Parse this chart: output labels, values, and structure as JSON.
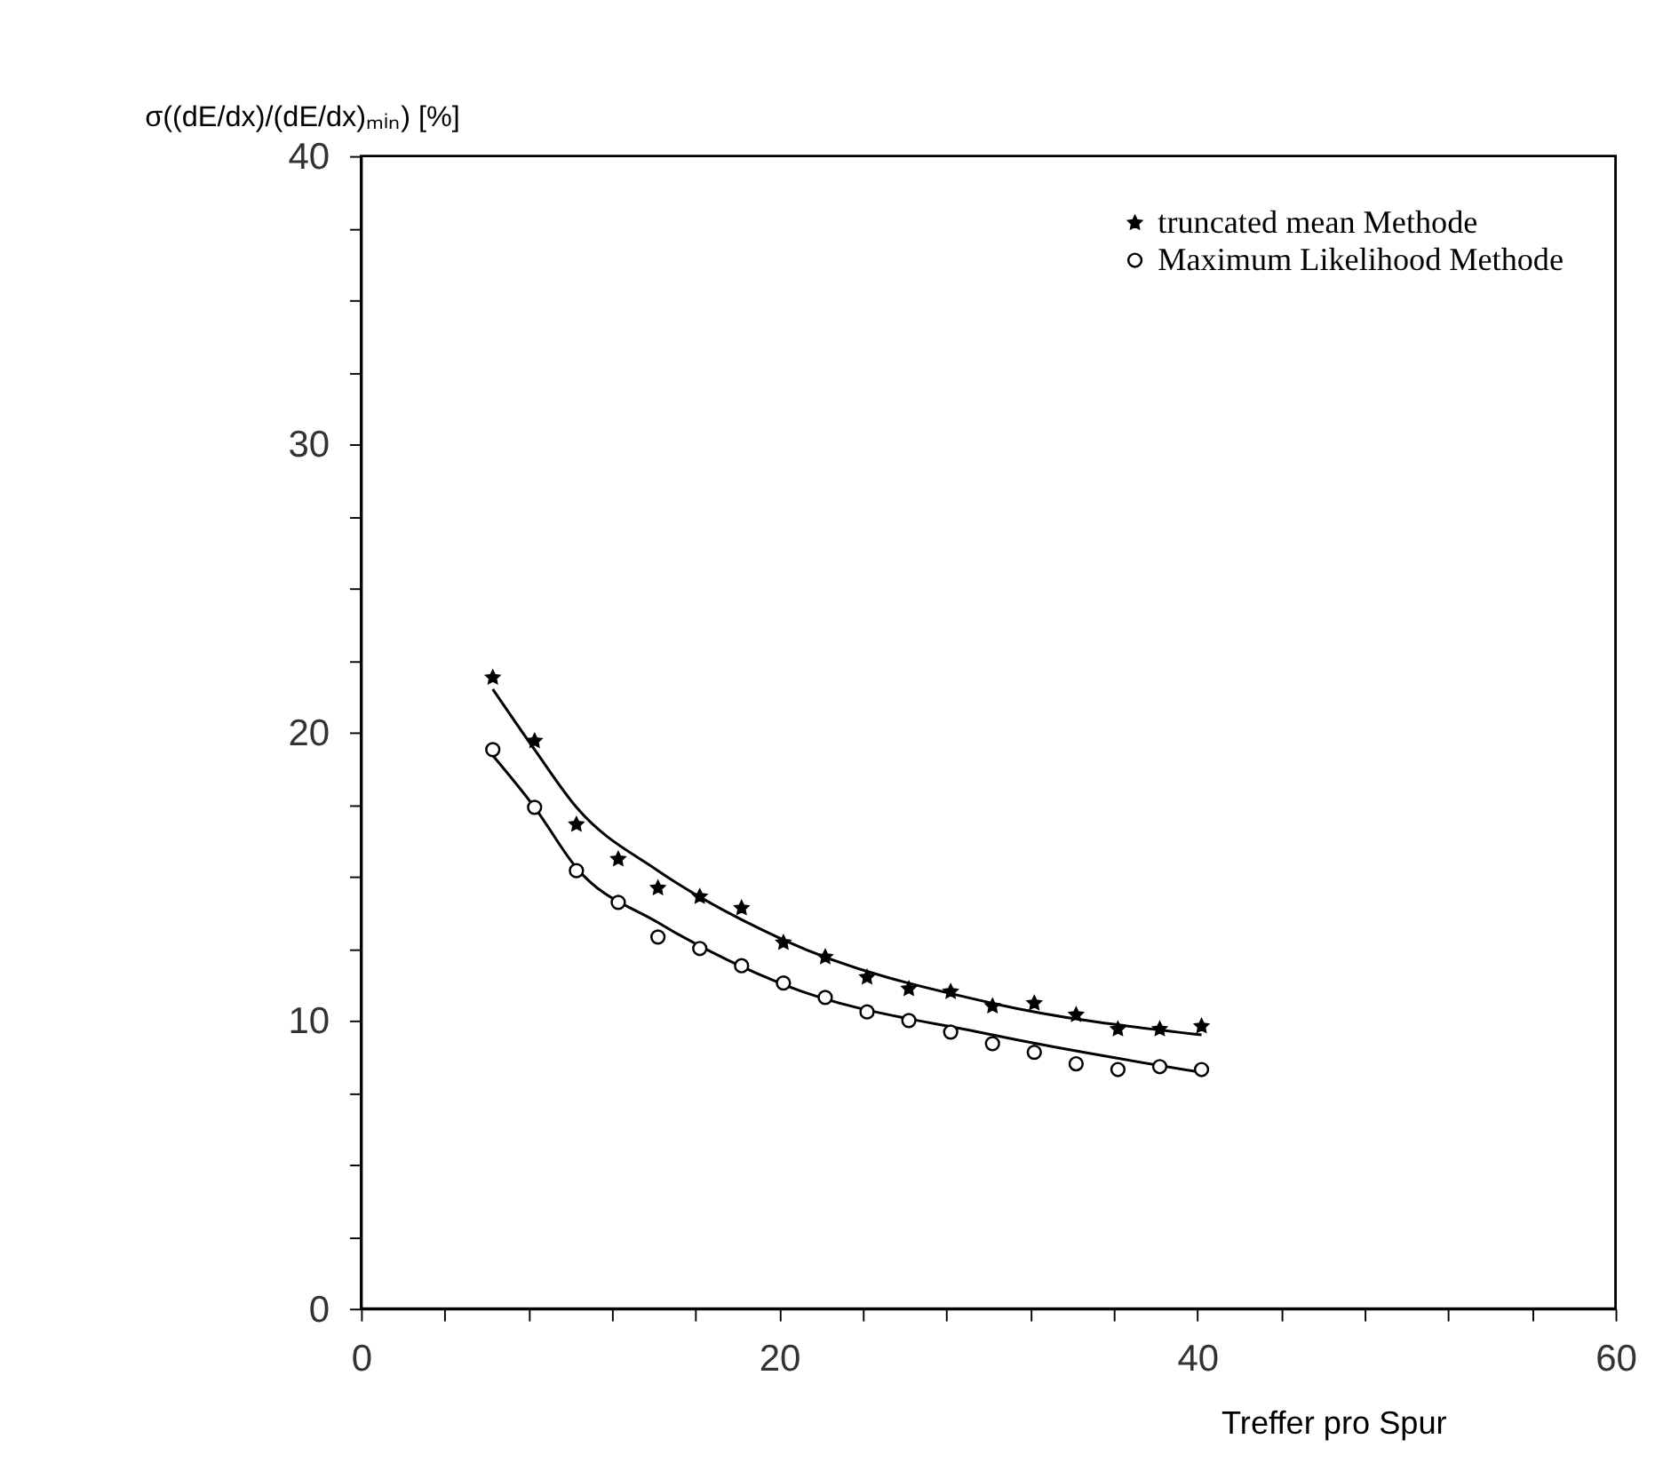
{
  "chart_data": {
    "type": "scatter",
    "xlabel": "Treffer pro Spur",
    "ylabel": "σ((dE/dx)/(dE/dx)ₘᵢₙ) [%]",
    "xlim": [
      0,
      60
    ],
    "ylim": [
      0,
      40
    ],
    "xticks": [
      0,
      {
        "value": 4,
        "label": null
      },
      {
        "value": 8,
        "label": null
      },
      {
        "value": 12,
        "label": null
      },
      {
        "value": 16,
        "label": null
      },
      20,
      {
        "value": 24,
        "label": null
      },
      {
        "value": 28,
        "label": null
      },
      {
        "value": 32,
        "label": null
      },
      {
        "value": 36,
        "label": null
      },
      40,
      {
        "value": 44,
        "label": null
      },
      {
        "value": 48,
        "label": null
      },
      {
        "value": 52,
        "label": null
      },
      {
        "value": 56,
        "label": null
      },
      60
    ],
    "yticks": [
      0,
      {
        "value": 2.5,
        "label": null
      },
      {
        "value": 5,
        "label": null
      },
      {
        "value": 7.5,
        "label": null
      },
      10,
      {
        "value": 12.5,
        "label": null
      },
      {
        "value": 15,
        "label": null
      },
      {
        "value": 17.5,
        "label": null
      },
      20,
      {
        "value": 22.5,
        "label": null
      },
      {
        "value": 25,
        "label": null
      },
      {
        "value": 27.5,
        "label": null
      },
      30,
      {
        "value": 32.5,
        "label": null
      },
      {
        "value": 35,
        "label": null
      },
      {
        "value": 37.5,
        "label": null
      },
      40
    ],
    "grid": false,
    "legend": "top right",
    "series": [
      {
        "name": "truncated mean Methode",
        "marker": "star",
        "color": "#000000",
        "x": [
          6.3,
          8.3,
          10.3,
          12.3,
          14.2,
          16.2,
          18.2,
          20.2,
          22.2,
          24.2,
          26.2,
          28.2,
          30.2,
          32.2,
          34.2,
          36.2,
          38.2,
          40.2
        ],
        "values": [
          21.9,
          19.7,
          16.8,
          15.6,
          14.6,
          14.3,
          13.9,
          12.7,
          12.2,
          11.5,
          11.1,
          11.0,
          10.5,
          10.6,
          10.2,
          9.7,
          9.7,
          9.8
        ]
      },
      {
        "name": "Maximum Likelihood Methode",
        "marker": "circle",
        "color": "#000000",
        "x": [
          6.3,
          8.3,
          10.3,
          12.3,
          14.2,
          16.2,
          18.2,
          20.2,
          22.2,
          24.2,
          26.2,
          28.2,
          30.2,
          32.2,
          34.2,
          36.2,
          38.2,
          40.2
        ],
        "values": [
          19.4,
          17.4,
          15.2,
          14.1,
          12.9,
          12.5,
          11.9,
          11.3,
          10.8,
          10.3,
          10.0,
          9.6,
          9.2,
          8.9,
          8.5,
          8.3,
          8.4,
          8.3
        ]
      },
      {
        "type": "line",
        "marker": "none",
        "color": "#000000",
        "x": [
          6.3,
          8.3,
          10.3,
          14.2,
          20.2,
          30.2,
          40.2
        ],
        "values": [
          21.5,
          19.4,
          17.4,
          15.2,
          12.8,
          10.6,
          9.5
        ]
      },
      {
        "type": "line",
        "marker": "none",
        "color": "#000000",
        "x": [
          6.3,
          8.3,
          10.3,
          14.2,
          20.2,
          30.2,
          40.2
        ],
        "values": [
          19.2,
          17.4,
          15.3,
          13.4,
          11.25,
          9.5,
          8.2
        ]
      }
    ]
  }
}
